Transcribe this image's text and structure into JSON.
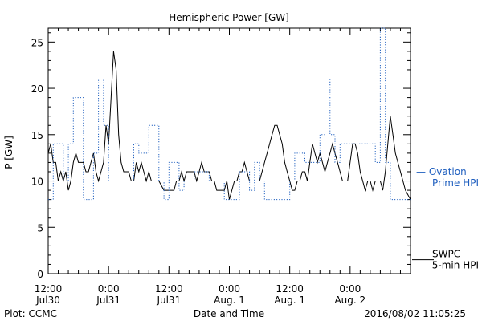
{
  "chart_data": {
    "type": "line",
    "title": "Hemispheric Power [GW]",
    "ylabel": "P [GW]",
    "xlabel": "Date and Time",
    "ylim": [
      0,
      26.5
    ],
    "xlim": [
      0,
      72
    ],
    "yticks": [
      0,
      5,
      10,
      15,
      20,
      25
    ],
    "xticks": [
      {
        "x": 0,
        "line1": "12:00",
        "line2": "Jul30"
      },
      {
        "x": 12,
        "line1": "0:00",
        "line2": "Jul31"
      },
      {
        "x": 24,
        "line1": "12:00",
        "line2": "Jul31"
      },
      {
        "x": 36,
        "line1": "0:00",
        "line2": "Aug. 1"
      },
      {
        "x": 48,
        "line1": "12:00",
        "line2": "Aug. 1"
      },
      {
        "x": 60,
        "line1": "0:00",
        "line2": "Aug. 2"
      }
    ],
    "series": [
      {
        "name": "SWPC 5-min HPI",
        "style": "solid",
        "color": "#000000",
        "points": [
          [
            0,
            13
          ],
          [
            0.5,
            14
          ],
          [
            1,
            12
          ],
          [
            1.5,
            12
          ],
          [
            2,
            10
          ],
          [
            2.5,
            11
          ],
          [
            3,
            10
          ],
          [
            3.5,
            11
          ],
          [
            4,
            9
          ],
          [
            4.5,
            10
          ],
          [
            5,
            12
          ],
          [
            5.5,
            13
          ],
          [
            6,
            12
          ],
          [
            7,
            12
          ],
          [
            7.5,
            11
          ],
          [
            8,
            11
          ],
          [
            8.5,
            12
          ],
          [
            9,
            13
          ],
          [
            9.5,
            11
          ],
          [
            10,
            10
          ],
          [
            11,
            12
          ],
          [
            11.5,
            16
          ],
          [
            12,
            14
          ],
          [
            12.5,
            19
          ],
          [
            13,
            24
          ],
          [
            13.5,
            22
          ],
          [
            14,
            15
          ],
          [
            14.5,
            12
          ],
          [
            15,
            11
          ],
          [
            16,
            11
          ],
          [
            16.5,
            10
          ],
          [
            17,
            10
          ],
          [
            17.5,
            12
          ],
          [
            18,
            11
          ],
          [
            18.5,
            12
          ],
          [
            19,
            11
          ],
          [
            19.5,
            10
          ],
          [
            20,
            11
          ],
          [
            20.5,
            10
          ],
          [
            21,
            10
          ],
          [
            21.5,
            10
          ],
          [
            22,
            10
          ],
          [
            23,
            9
          ],
          [
            24,
            9
          ],
          [
            24.5,
            9
          ],
          [
            25,
            9
          ],
          [
            25.5,
            10
          ],
          [
            26,
            10
          ],
          [
            26.5,
            11
          ],
          [
            27,
            10
          ],
          [
            27.5,
            11
          ],
          [
            28,
            11
          ],
          [
            28.5,
            11
          ],
          [
            29,
            11
          ],
          [
            29.5,
            10
          ],
          [
            30,
            11
          ],
          [
            30.5,
            12
          ],
          [
            31,
            11
          ],
          [
            31.5,
            11
          ],
          [
            32,
            11
          ],
          [
            32.5,
            10
          ],
          [
            33,
            10
          ],
          [
            33.5,
            9
          ],
          [
            34,
            9
          ],
          [
            35,
            9
          ],
          [
            35.5,
            10
          ],
          [
            36,
            8
          ],
          [
            36.5,
            9
          ],
          [
            37,
            10
          ],
          [
            37.5,
            10
          ],
          [
            38,
            11
          ],
          [
            38.5,
            11
          ],
          [
            39,
            12
          ],
          [
            39.5,
            11
          ],
          [
            40,
            10
          ],
          [
            40.5,
            10
          ],
          [
            41,
            10
          ],
          [
            41.5,
            10
          ],
          [
            42,
            10
          ],
          [
            42.5,
            11
          ],
          [
            43,
            12
          ],
          [
            43.5,
            13
          ],
          [
            44,
            14
          ],
          [
            44.5,
            15
          ],
          [
            45,
            16
          ],
          [
            45.5,
            16
          ],
          [
            46,
            15
          ],
          [
            46.5,
            14
          ],
          [
            47,
            12
          ],
          [
            47.5,
            11
          ],
          [
            48,
            10
          ],
          [
            48.5,
            9
          ],
          [
            49,
            9
          ],
          [
            49.5,
            10
          ],
          [
            50,
            10
          ],
          [
            50.5,
            11
          ],
          [
            51,
            11
          ],
          [
            51.5,
            10
          ],
          [
            52,
            12
          ],
          [
            52.5,
            14
          ],
          [
            53,
            13
          ],
          [
            53.5,
            12
          ],
          [
            54,
            13
          ],
          [
            54.5,
            12
          ],
          [
            55,
            11
          ],
          [
            55.5,
            12
          ],
          [
            56,
            13
          ],
          [
            56.5,
            14
          ],
          [
            57,
            13
          ],
          [
            57.5,
            12
          ],
          [
            58,
            11
          ],
          [
            58.5,
            10
          ],
          [
            59,
            10
          ],
          [
            59.5,
            10
          ],
          [
            60,
            12
          ],
          [
            60.5,
            14
          ],
          [
            61,
            14
          ],
          [
            61.5,
            13
          ],
          [
            62,
            11
          ],
          [
            62.5,
            10
          ],
          [
            63,
            9
          ],
          [
            63.5,
            10
          ],
          [
            64,
            10
          ],
          [
            64.5,
            9
          ],
          [
            65,
            10
          ],
          [
            65.5,
            10
          ],
          [
            66,
            10
          ],
          [
            66.5,
            9
          ],
          [
            67,
            11
          ],
          [
            67.5,
            14
          ],
          [
            68,
            17
          ],
          [
            68.5,
            15
          ],
          [
            69,
            13
          ],
          [
            69.5,
            12
          ],
          [
            70,
            11
          ],
          [
            70.5,
            10
          ],
          [
            71,
            9
          ],
          [
            72,
            8
          ]
        ]
      },
      {
        "name": "Ovation Prime HPI",
        "style": "dotted",
        "color": "#1f5fbf",
        "points": [
          [
            0,
            8
          ],
          [
            1,
            8
          ],
          [
            1,
            14
          ],
          [
            3,
            14
          ],
          [
            3,
            10
          ],
          [
            4,
            10
          ],
          [
            4,
            14
          ],
          [
            5,
            14
          ],
          [
            5,
            19
          ],
          [
            7,
            19
          ],
          [
            7,
            8
          ],
          [
            9,
            8
          ],
          [
            9,
            13
          ],
          [
            10,
            13
          ],
          [
            10,
            21
          ],
          [
            11,
            21
          ],
          [
            11,
            16
          ],
          [
            12,
            16
          ],
          [
            12,
            10
          ],
          [
            17,
            10
          ],
          [
            17,
            14
          ],
          [
            18,
            14
          ],
          [
            18,
            13
          ],
          [
            20,
            13
          ],
          [
            20,
            16
          ],
          [
            22,
            16
          ],
          [
            22,
            10
          ],
          [
            23,
            10
          ],
          [
            23,
            8
          ],
          [
            24,
            8
          ],
          [
            24,
            12
          ],
          [
            26,
            12
          ],
          [
            26,
            9
          ],
          [
            27,
            9
          ],
          [
            27,
            10
          ],
          [
            29,
            10
          ],
          [
            29,
            11
          ],
          [
            32,
            11
          ],
          [
            32,
            10
          ],
          [
            35,
            10
          ],
          [
            35,
            8
          ],
          [
            38,
            8
          ],
          [
            38,
            11
          ],
          [
            40,
            11
          ],
          [
            40,
            9
          ],
          [
            41,
            9
          ],
          [
            41,
            12
          ],
          [
            42,
            12
          ],
          [
            42,
            10
          ],
          [
            43,
            10
          ],
          [
            43,
            8
          ],
          [
            48,
            8
          ],
          [
            48,
            10
          ],
          [
            49,
            10
          ],
          [
            49,
            13
          ],
          [
            51,
            13
          ],
          [
            51,
            12
          ],
          [
            54,
            12
          ],
          [
            54,
            15
          ],
          [
            55,
            15
          ],
          [
            55,
            21
          ],
          [
            56,
            21
          ],
          [
            56,
            15
          ],
          [
            57,
            15
          ],
          [
            57,
            12
          ],
          [
            58,
            12
          ],
          [
            58,
            14
          ],
          [
            65,
            14
          ],
          [
            65,
            12
          ],
          [
            66,
            12
          ],
          [
            66,
            26.5
          ],
          [
            67,
            26.5
          ],
          [
            67,
            12
          ],
          [
            68,
            12
          ],
          [
            68,
            8
          ],
          [
            72,
            8
          ]
        ]
      }
    ],
    "legend": [
      {
        "text": "— Ovation",
        "color": "#1f5fbf",
        "value": 11
      },
      {
        "text": "Prime HPI",
        "color": "#1f5fbf"
      },
      {
        "text": "SWPC",
        "color": "#000000",
        "value": 1.5
      },
      {
        "text": "5-min HPI",
        "color": "#000000"
      }
    ],
    "footer": {
      "left": "Plot: CCMC",
      "center": "Date and Time",
      "right": "2016/08/02 11:05:25"
    }
  }
}
